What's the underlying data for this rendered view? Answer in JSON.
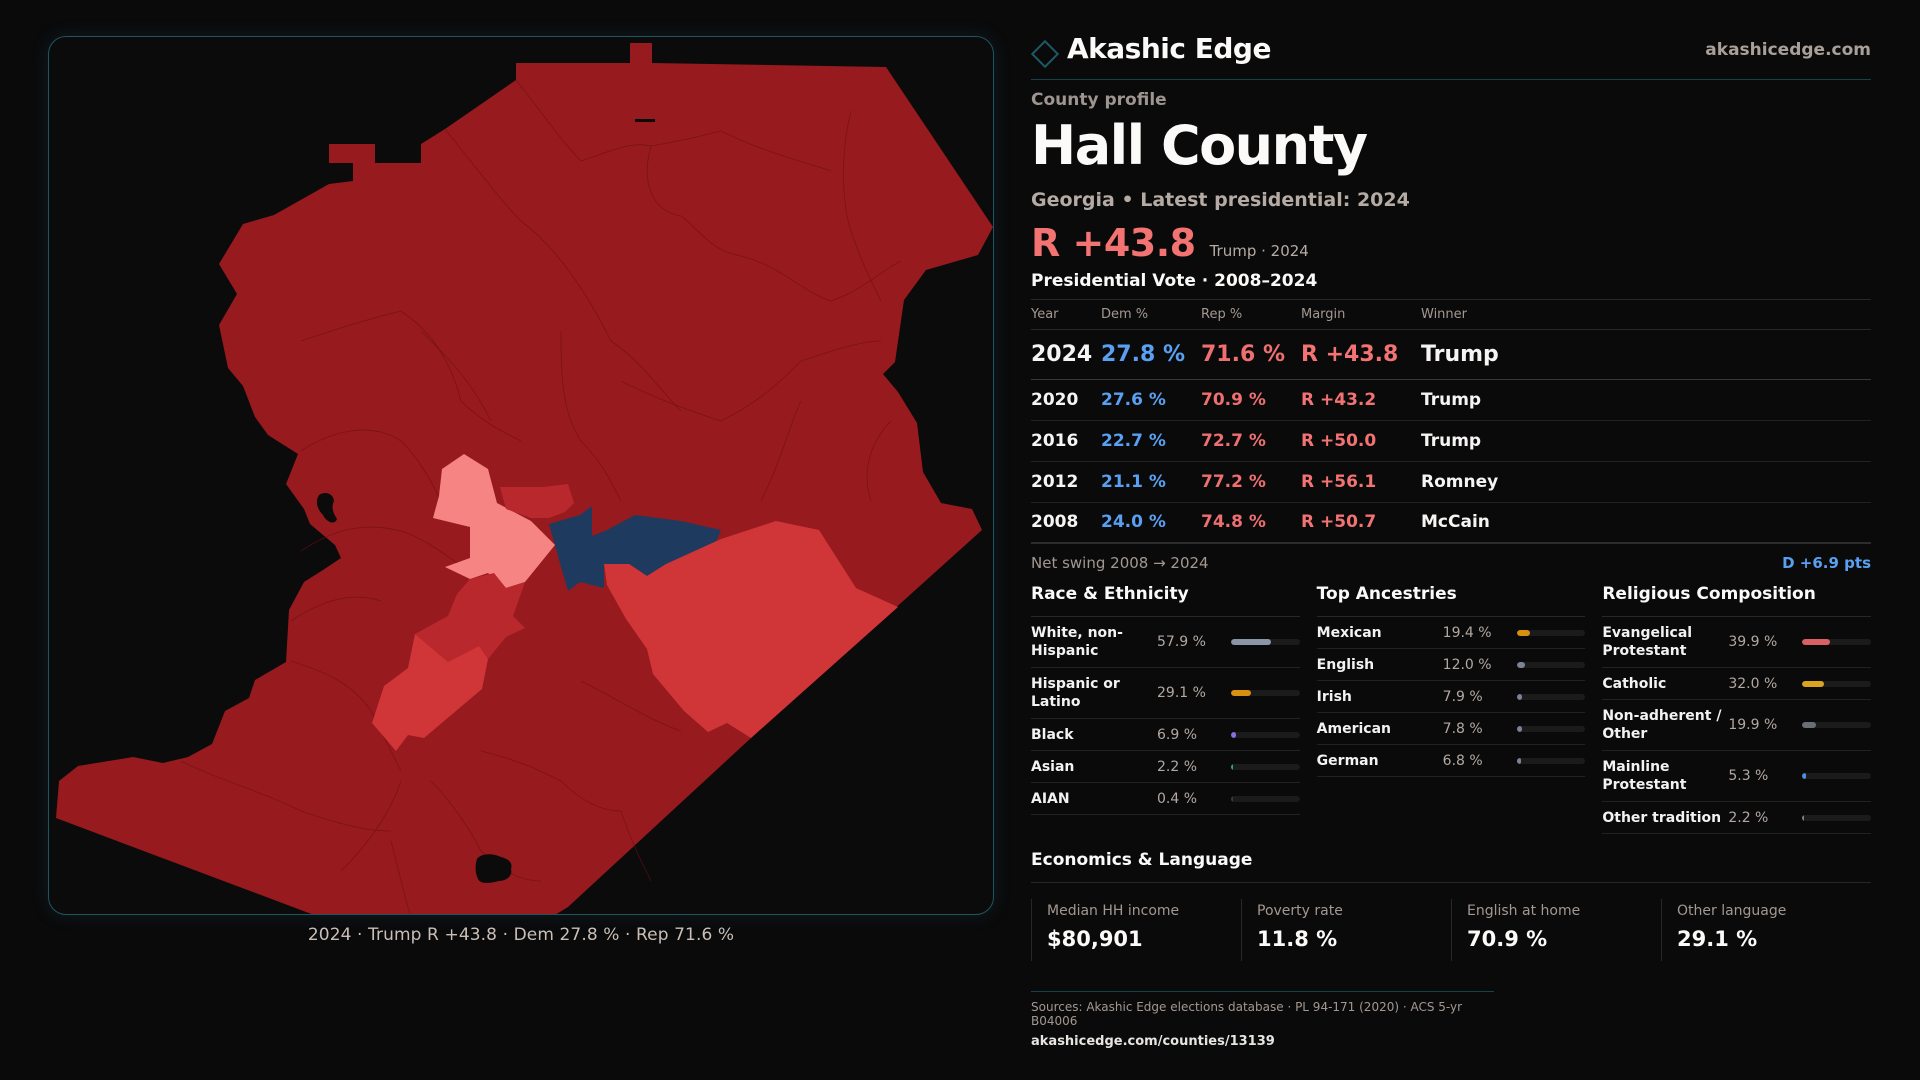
{
  "brand": {
    "name": "Akashic Edge",
    "url": "akashicedge.com",
    "logo_icon": "diamond-outline-icon"
  },
  "profile": {
    "eyebrow": "County profile",
    "county": "Hall County",
    "subtitle": "Georgia • Latest presidential: 2024",
    "headline_margin": "R +43.8",
    "headline_sub": "Trump · 2024"
  },
  "presidential": {
    "title": "Presidential Vote · 2008–2024",
    "columns": [
      "Year",
      "Dem %",
      "Rep %",
      "Margin",
      "Winner"
    ],
    "rows": [
      {
        "year": "2024",
        "dem": "27.8 %",
        "rep": "71.6 %",
        "margin": "R +43.8",
        "winner": "Trump"
      },
      {
        "year": "2020",
        "dem": "27.6 %",
        "rep": "70.9 %",
        "margin": "R +43.2",
        "winner": "Trump"
      },
      {
        "year": "2016",
        "dem": "22.7 %",
        "rep": "72.7 %",
        "margin": "R +50.0",
        "winner": "Trump"
      },
      {
        "year": "2012",
        "dem": "21.1 %",
        "rep": "77.2 %",
        "margin": "R +56.1",
        "winner": "Romney"
      },
      {
        "year": "2008",
        "dem": "24.0 %",
        "rep": "74.8 %",
        "margin": "R +50.7",
        "winner": "McCain"
      }
    ],
    "swing_label": "Net swing 2008 → 2024",
    "swing_value": "D +6.9 pts"
  },
  "race": {
    "title": "Race & Ethnicity",
    "items": [
      {
        "label": "White, non-Hispanic",
        "value": "57.9 %",
        "pct": 57.9,
        "color": "#8a95a8"
      },
      {
        "label": "Hispanic or Latino",
        "value": "29.1 %",
        "pct": 29.1,
        "color": "#d8900f"
      },
      {
        "label": "Black",
        "value": "6.9 %",
        "pct": 6.9,
        "color": "#8b6ee0"
      },
      {
        "label": "Asian",
        "value": "2.2 %",
        "pct": 2.2,
        "color": "#2aa58c"
      },
      {
        "label": "AIAN",
        "value": "0.4 %",
        "pct": 0.4,
        "color": "#3a3a3c"
      }
    ]
  },
  "ancestry": {
    "title": "Top Ancestries",
    "items": [
      {
        "label": "Mexican",
        "value": "19.4 %",
        "pct": 19.4,
        "color": "#d8900f"
      },
      {
        "label": "English",
        "value": "12.0 %",
        "pct": 12.0,
        "color": "#7a8496"
      },
      {
        "label": "Irish",
        "value": "7.9 %",
        "pct": 7.9,
        "color": "#7a8496"
      },
      {
        "label": "American",
        "value": "7.8 %",
        "pct": 7.8,
        "color": "#7a8496"
      },
      {
        "label": "German",
        "value": "6.8 %",
        "pct": 6.8,
        "color": "#7a8496"
      }
    ]
  },
  "religion": {
    "title": "Religious Composition",
    "items": [
      {
        "label": "Evangelical Protestant",
        "value": "39.9 %",
        "pct": 39.9,
        "color": "#d96064"
      },
      {
        "label": "Catholic",
        "value": "32.0 %",
        "pct": 32.0,
        "color": "#d9a51f"
      },
      {
        "label": "Non-adherent / Other",
        "value": "19.9 %",
        "pct": 19.9,
        "color": "#6a6e78"
      },
      {
        "label": "Mainline Protestant",
        "value": "5.3 %",
        "pct": 5.3,
        "color": "#4f8ee0"
      },
      {
        "label": "Other tradition",
        "value": "2.2 %",
        "pct": 2.2,
        "color": "#7d7f88"
      }
    ]
  },
  "economics": {
    "title": "Economics & Language",
    "items": [
      {
        "label": "Median HH income",
        "value": "$80,901"
      },
      {
        "label": "Poverty rate",
        "value": "11.8 %"
      },
      {
        "label": "English at home",
        "value": "70.9 %"
      },
      {
        "label": "Other language",
        "value": "29.1 %"
      }
    ]
  },
  "footer": {
    "sources": "Sources: Akashic Edge elections database · PL 94-171 (2020) · ACS 5-yr B04006",
    "url": "akashicedge.com/counties/13139"
  },
  "map": {
    "caption": "2024 · Trump R +43.8 · Dem 27.8 % · Rep 71.6 %",
    "colors": {
      "strong_rep": "#971a1e",
      "lean_rep": "#b9282c",
      "likely_rep": "#d03538",
      "tilt_rep": "#f58482",
      "dem": "#1f3a5f",
      "border": "#6e1014"
    }
  }
}
